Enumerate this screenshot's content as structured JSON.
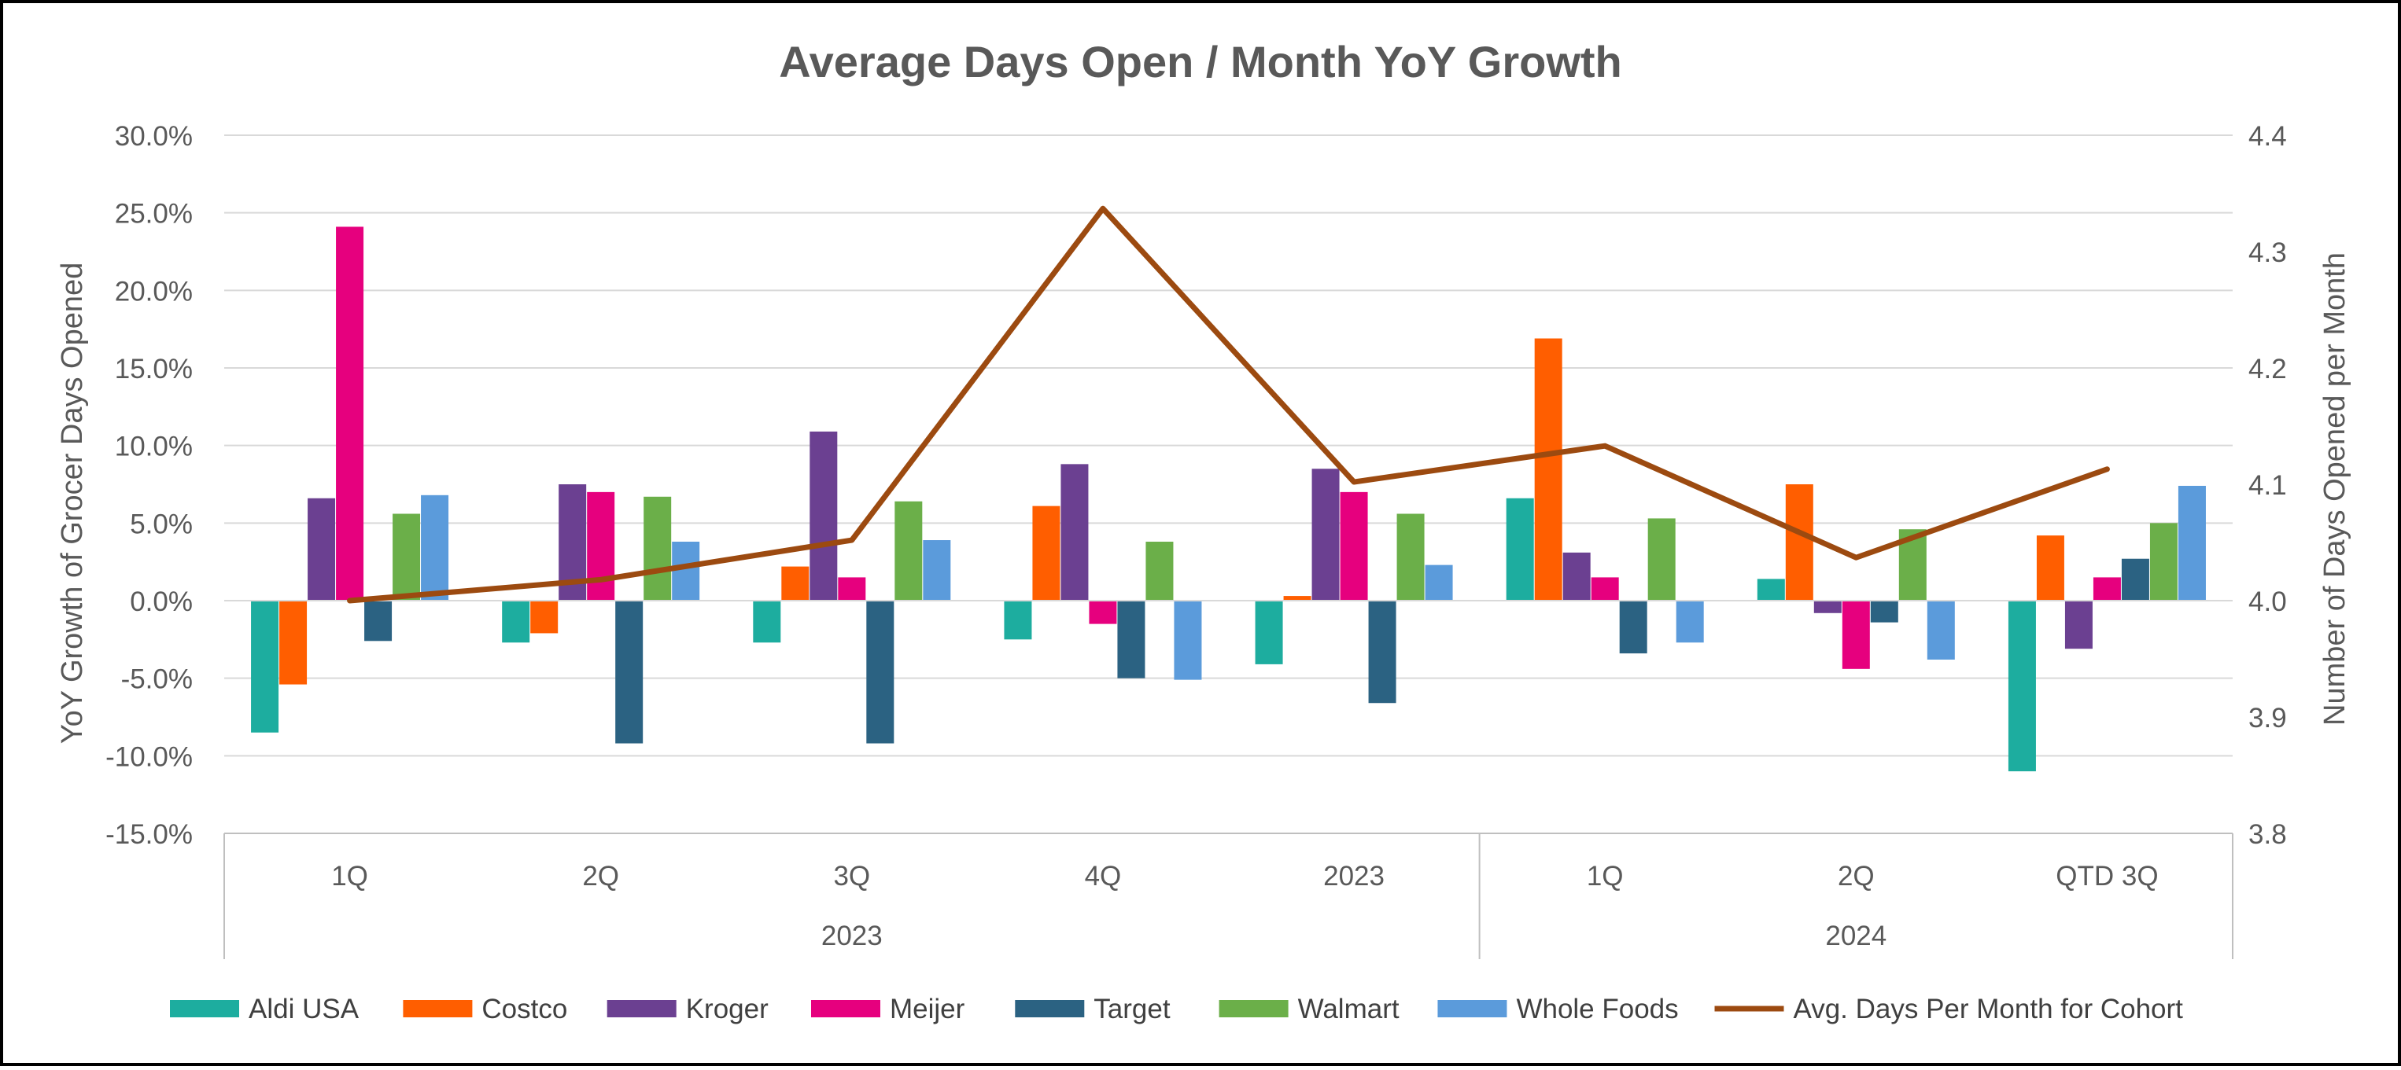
{
  "chart_data": {
    "type": "bar+line",
    "title": "Average Days Open / Month YoY Growth",
    "ylabel": "YoY Growth of Grocer Days Opened",
    "y2label": "Number of Days Opened per Month",
    "ylim": [
      -0.15,
      0.3
    ],
    "y2lim": [
      3.8,
      4.4
    ],
    "y_ticks": [
      "30.0%",
      "25.0%",
      "20.0%",
      "15.0%",
      "10.0%",
      "5.0%",
      "0.0%",
      "-5.0%",
      "-10.0%",
      "-15.0%"
    ],
    "y2_ticks": [
      "4.4",
      "4.3",
      "4.2",
      "4.1",
      "4.0",
      "3.9",
      "3.8"
    ],
    "categories": [
      "1Q",
      "2Q",
      "3Q",
      "4Q",
      "2023",
      "1Q",
      "2Q",
      "QTD 3Q"
    ],
    "groups": [
      {
        "label": "2023",
        "start": 0,
        "end": 4
      },
      {
        "label": "2024",
        "start": 5,
        "end": 7
      }
    ],
    "series": [
      {
        "name": "Aldi USA",
        "color": "#1DAD9F",
        "values": [
          -0.085,
          -0.027,
          -0.027,
          -0.025,
          -0.041,
          0.066,
          0.014,
          -0.11
        ]
      },
      {
        "name": "Costco",
        "color": "#FF5E00",
        "values": [
          -0.054,
          -0.021,
          0.022,
          0.061,
          0.003,
          0.169,
          0.075,
          0.042
        ]
      },
      {
        "name": "Kroger",
        "color": "#6B4091",
        "values": [
          0.066,
          0.075,
          0.109,
          0.088,
          0.085,
          0.031,
          -0.008,
          -0.031
        ]
      },
      {
        "name": "Meijer",
        "color": "#E6007E",
        "values": [
          0.241,
          0.07,
          0.015,
          -0.015,
          0.07,
          0.015,
          -0.044,
          0.015
        ]
      },
      {
        "name": "Target",
        "color": "#2B6282",
        "values": [
          -0.026,
          -0.092,
          -0.092,
          -0.05,
          -0.066,
          -0.034,
          -0.014,
          0.027
        ]
      },
      {
        "name": "Walmart",
        "color": "#6BAF49",
        "values": [
          0.056,
          0.067,
          0.064,
          0.038,
          0.056,
          0.053,
          0.046,
          0.05
        ]
      },
      {
        "name": "Whole Foods",
        "color": "#5B9BDB",
        "values": [
          0.068,
          0.038,
          0.039,
          -0.051,
          0.023,
          -0.027,
          -0.038,
          0.074
        ]
      }
    ],
    "line": {
      "name": "Avg. Days Per Month for Cohort",
      "color": "#9C4A10",
      "axis": "right",
      "values": [
        4.0,
        4.018,
        4.052,
        4.337,
        4.102,
        4.133,
        4.037,
        4.113
      ]
    },
    "legend": "bottom"
  }
}
